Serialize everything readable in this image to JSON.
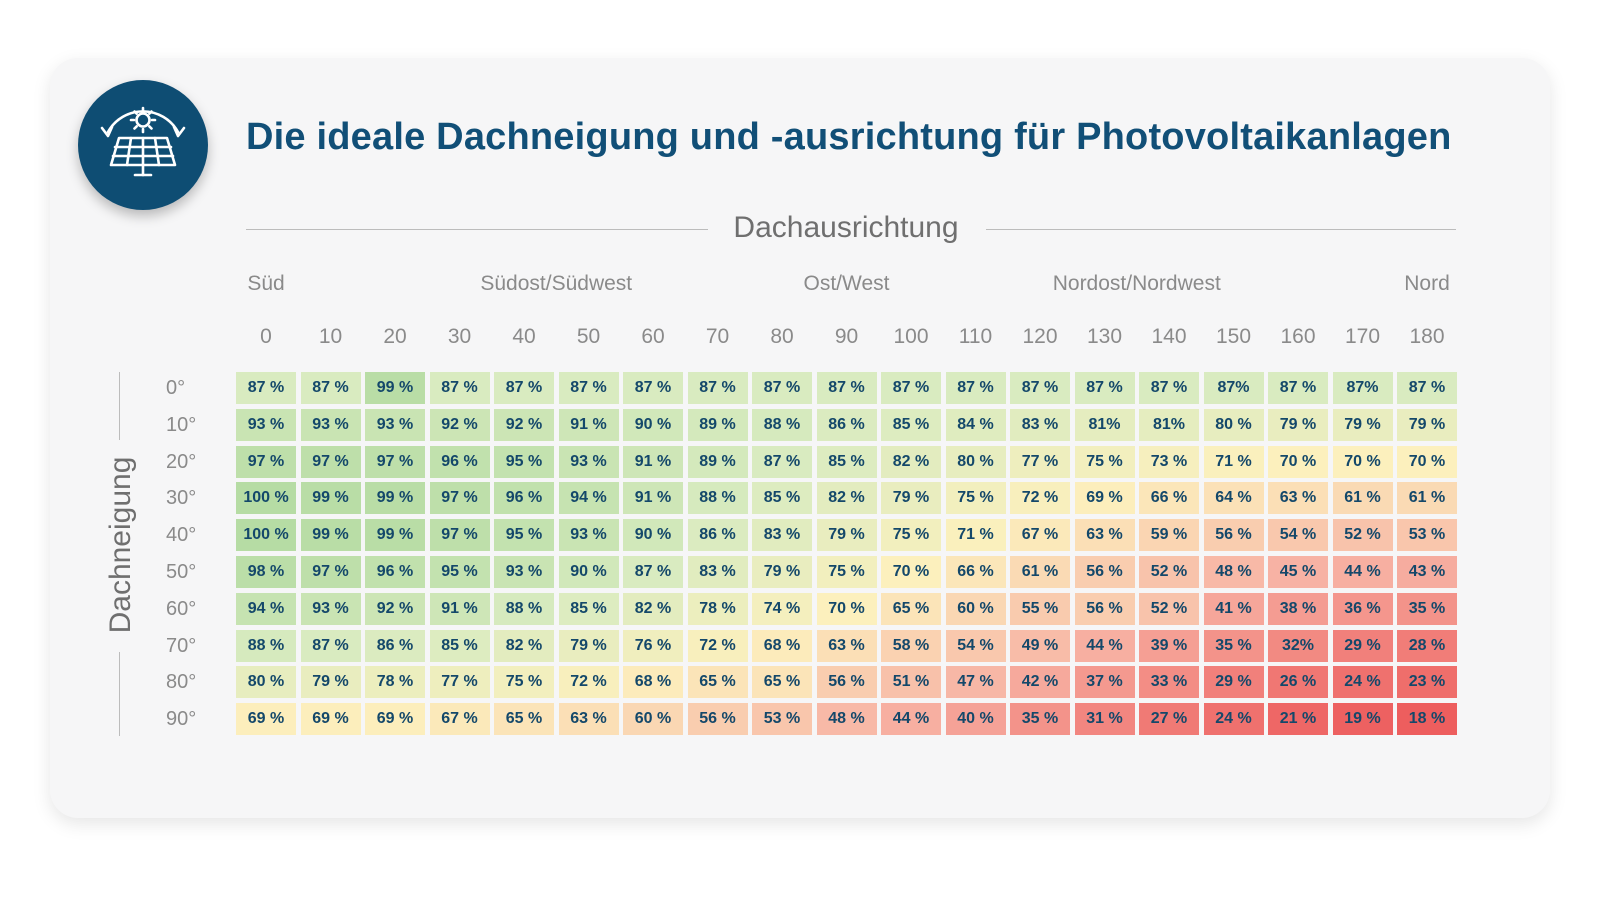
{
  "title": "Die ideale Dachneigung und -ausrichtung für Photovoltaikanlagen",
  "logo_icon": "solar-panel-sun-icon",
  "colors": {
    "title": "#114f77",
    "logo_bg": "#0e4d73",
    "cell_text": "#14486a"
  },
  "chart_data": {
    "type": "heatmap",
    "title": "Die ideale Dachneigung und -ausrichtung für Photovoltaikanlagen",
    "xlabel": "Dachausrichtung",
    "ylabel": "Dachneigung",
    "direction_labels": [
      {
        "text": "Süd",
        "at": "0"
      },
      {
        "text": "Südost/Südwest",
        "at": "45"
      },
      {
        "text": "Ost/West",
        "at": "90"
      },
      {
        "text": "Nordost/Nordwest",
        "at": "135"
      },
      {
        "text": "Nord",
        "at": "180"
      }
    ],
    "x": [
      "0",
      "10",
      "20",
      "30",
      "40",
      "50",
      "60",
      "70",
      "80",
      "90",
      "100",
      "110",
      "120",
      "130",
      "140",
      "150",
      "160",
      "170",
      "180"
    ],
    "y": [
      "0°",
      "10°",
      "20°",
      "30°",
      "40°",
      "50°",
      "60°",
      "70°",
      "80°",
      "90°"
    ],
    "cells": [
      [
        "87 %",
        "87 %",
        "99 %",
        "87 %",
        "87 %",
        "87 %",
        "87 %",
        "87 %",
        "87 %",
        "87 %",
        "87 %",
        "87 %",
        "87 %",
        "87 %",
        "87 %",
        "87%",
        "87 %",
        "87%",
        "87 %"
      ],
      [
        "93 %",
        "93 %",
        "93 %",
        "92 %",
        "92 %",
        "91 %",
        "90 %",
        "89 %",
        "88 %",
        "86 %",
        "85 %",
        "84 %",
        "83 %",
        "81%",
        "81%",
        "80 %",
        "79 %",
        "79 %",
        "79 %"
      ],
      [
        "97 %",
        "97 %",
        "97 %",
        "96 %",
        "95 %",
        "93 %",
        "91 %",
        "89 %",
        "87 %",
        "85 %",
        "82 %",
        "80 %",
        "77 %",
        "75 %",
        "73 %",
        "71 %",
        "70 %",
        "70 %",
        "70 %"
      ],
      [
        "100 %",
        "99 %",
        "99 %",
        "97 %",
        "96 %",
        "94 %",
        "91 %",
        "88 %",
        "85 %",
        "82 %",
        "79 %",
        "75 %",
        "72 %",
        "69 %",
        "66 %",
        "64 %",
        "63 %",
        "61 %",
        "61 %"
      ],
      [
        "100 %",
        "99 %",
        "99 %",
        "97 %",
        "95 %",
        "93 %",
        "90 %",
        "86 %",
        "83 %",
        "79 %",
        "75 %",
        "71 %",
        "67 %",
        "63 %",
        "59 %",
        "56 %",
        "54 %",
        "52 %",
        "53 %"
      ],
      [
        "98 %",
        "97 %",
        "96 %",
        "95 %",
        "93 %",
        "90 %",
        "87 %",
        "83 %",
        "79 %",
        "75 %",
        "70 %",
        "66 %",
        "61 %",
        "56 %",
        "52 %",
        "48 %",
        "45 %",
        "44 %",
        "43 %"
      ],
      [
        "94 %",
        "93 %",
        "92 %",
        "91 %",
        "88 %",
        "85 %",
        "82 %",
        "78 %",
        "74 %",
        "70 %",
        "65 %",
        "60 %",
        "55 %",
        "56 %",
        "52 %",
        "41 %",
        "38 %",
        "36 %",
        "35 %"
      ],
      [
        "88 %",
        "87 %",
        "86 %",
        "85 %",
        "82 %",
        "79 %",
        "76 %",
        "72 %",
        "68 %",
        "63 %",
        "58 %",
        "54 %",
        "49 %",
        "44 %",
        "39 %",
        "35 %",
        "32%",
        "29 %",
        "28 %"
      ],
      [
        "80 %",
        "79 %",
        "78 %",
        "77 %",
        "75 %",
        "72 %",
        "68 %",
        "65 %",
        "65 %",
        "56 %",
        "51 %",
        "47 %",
        "42 %",
        "37 %",
        "33 %",
        "29 %",
        "26 %",
        "24 %",
        "23 %"
      ],
      [
        "69 %",
        "69 %",
        "69 %",
        "67 %",
        "65 %",
        "63 %",
        "60 %",
        "56 %",
        "53 %",
        "48 %",
        "44 %",
        "40 %",
        "35 %",
        "31 %",
        "27 %",
        "24 %",
        "21 %",
        "19 %",
        "18 %"
      ]
    ],
    "color_scale": {
      "stops": [
        {
          "value": 18,
          "color": "#ed5e5e"
        },
        {
          "value": 45,
          "color": "#f7b2a4"
        },
        {
          "value": 70,
          "color": "#fcf0bd"
        },
        {
          "value": 87,
          "color": "#d9ebc0"
        },
        {
          "value": 100,
          "color": "#b6dca4"
        }
      ]
    },
    "grid": false,
    "legend": "none"
  }
}
